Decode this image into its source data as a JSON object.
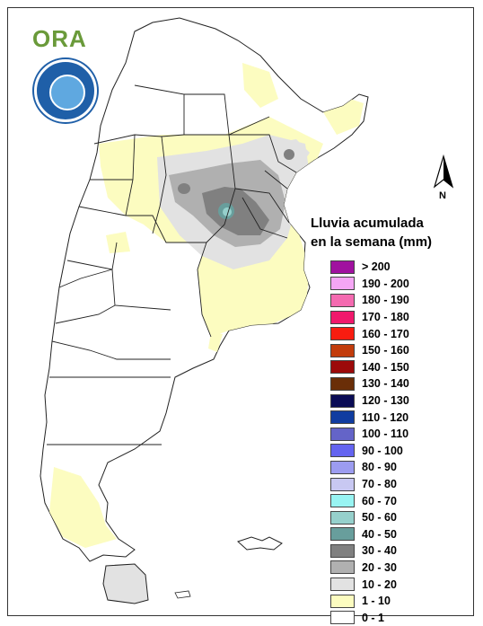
{
  "logo": {
    "text": "ORA"
  },
  "legend": {
    "title_line1": "Lluvia acumulada",
    "title_line2": "en la semana (mm)",
    "classes": [
      {
        "label": "> 200",
        "color": "#a0119f"
      },
      {
        "label": "190 - 200",
        "color": "#f5a6f5"
      },
      {
        "label": "180 - 190",
        "color": "#f46ab0"
      },
      {
        "label": "170 - 180",
        "color": "#f0186c"
      },
      {
        "label": "160 - 170",
        "color": "#f81c10"
      },
      {
        "label": "150 - 160",
        "color": "#c23c0c"
      },
      {
        "label": "140 - 150",
        "color": "#9c0a0a"
      },
      {
        "label": "130 - 140",
        "color": "#6a2e08"
      },
      {
        "label": "120 - 130",
        "color": "#0a0c55"
      },
      {
        "label": "110 - 120",
        "color": "#103ca0"
      },
      {
        "label": "100 - 110",
        "color": "#6464c8"
      },
      {
        "label": "90 - 100",
        "color": "#6464f0"
      },
      {
        "label": "80 - 90",
        "color": "#9c9cf0"
      },
      {
        "label": "70 - 80",
        "color": "#c8c8f2"
      },
      {
        "label": "60 - 70",
        "color": "#98f4f2"
      },
      {
        "label": "50 - 60",
        "color": "#96d0cc"
      },
      {
        "label": "40 - 50",
        "color": "#689e9c"
      },
      {
        "label": "30 - 40",
        "color": "#808080"
      },
      {
        "label": "20 - 30",
        "color": "#b0b0b0"
      },
      {
        "label": "10 - 20",
        "color": "#e2e2e2"
      },
      {
        "label": "1 - 10",
        "color": "#fcfcc0"
      },
      {
        "label": "0 - 1",
        "color": "#ffffff"
      }
    ]
  },
  "north_arrow": {
    "label": "N"
  }
}
